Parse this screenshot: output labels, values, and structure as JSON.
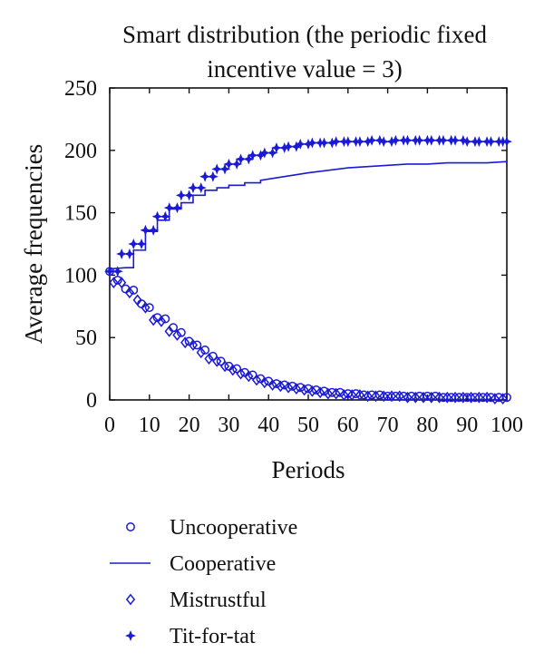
{
  "chart_data": {
    "type": "line",
    "title": "Smart distribution (the periodic fixed incentive value = 3)",
    "title_lines": [
      "Smart distribution (the periodic fixed",
      "incentive value = 3)"
    ],
    "xlabel": "Periods",
    "ylabel": "Average frequencies",
    "xlim": [
      0,
      100
    ],
    "ylim": [
      0,
      250
    ],
    "xticks": [
      0,
      10,
      20,
      30,
      40,
      50,
      60,
      70,
      80,
      90,
      100
    ],
    "yticks": [
      0,
      50,
      100,
      150,
      200,
      250
    ],
    "grid": false,
    "legend_position": "below",
    "series_color": "#1a1ad6",
    "series": [
      {
        "name": "Uncooperative",
        "marker": "circle",
        "x": [
          0,
          2,
          4,
          6,
          8,
          10,
          12,
          14,
          16,
          18,
          20,
          22,
          24,
          26,
          28,
          30,
          32,
          34,
          36,
          38,
          40,
          42,
          44,
          46,
          48,
          50,
          52,
          54,
          56,
          58,
          60,
          62,
          64,
          66,
          68,
          70,
          72,
          74,
          76,
          78,
          80,
          82,
          84,
          86,
          88,
          90,
          92,
          94,
          96,
          98,
          100
        ],
        "values": [
          103,
          96,
          89,
          88,
          77,
          74,
          66,
          65,
          58,
          54,
          47,
          44,
          40,
          35,
          31,
          27,
          25,
          22,
          20,
          17,
          15,
          13,
          12,
          11,
          10,
          9,
          8,
          7,
          6,
          6,
          5,
          5,
          4,
          4,
          4,
          3,
          3,
          3,
          3,
          3,
          3,
          3,
          2,
          2,
          2,
          2,
          2,
          2,
          2,
          2,
          2
        ]
      },
      {
        "name": "Cooperative",
        "marker": "line",
        "x": [
          0,
          4,
          6,
          6,
          9,
          9,
          12,
          12,
          15,
          15,
          18,
          18,
          21,
          21,
          24,
          24,
          27,
          27,
          30,
          30,
          34,
          34,
          38,
          38,
          42,
          46,
          50,
          55,
          60,
          65,
          70,
          75,
          80,
          85,
          90,
          95,
          100
        ],
        "values": [
          105,
          106,
          106,
          120,
          120,
          135,
          135,
          144,
          144,
          153,
          153,
          158,
          158,
          164,
          164,
          168,
          168,
          170,
          170,
          172,
          172,
          174,
          174,
          176,
          178,
          180,
          182,
          184,
          186,
          187,
          188,
          189,
          189,
          190,
          190,
          190,
          191
        ]
      },
      {
        "name": "Mistrustful",
        "marker": "diamond",
        "x": [
          1,
          3,
          5,
          7,
          9,
          11,
          13,
          15,
          17,
          19,
          21,
          23,
          25,
          27,
          29,
          31,
          33,
          35,
          37,
          39,
          41,
          43,
          45,
          47,
          49,
          51,
          53,
          55,
          57,
          59,
          61,
          63,
          65,
          67,
          69,
          71,
          73,
          75,
          77,
          79,
          81,
          83,
          85,
          87,
          89,
          91,
          93,
          95,
          97,
          99
        ],
        "values": [
          94,
          94,
          86,
          80,
          74,
          64,
          63,
          55,
          52,
          46,
          44,
          38,
          33,
          31,
          27,
          24,
          21,
          19,
          16,
          14,
          12,
          11,
          10,
          9,
          8,
          7,
          6,
          5,
          5,
          4,
          4,
          4,
          3,
          3,
          3,
          3,
          3,
          2,
          2,
          2,
          2,
          2,
          2,
          2,
          2,
          2,
          2,
          2,
          1,
          1
        ]
      },
      {
        "name": "Tit-for-tat",
        "marker": "star",
        "x": [
          0,
          2,
          3,
          5,
          6,
          8,
          9,
          11,
          12,
          14,
          15,
          17,
          18,
          20,
          21,
          23,
          24,
          26,
          27,
          29,
          30,
          32,
          33,
          35,
          36,
          38,
          39,
          41,
          42,
          44,
          45,
          47,
          48,
          50,
          51,
          53,
          54,
          56,
          57,
          59,
          60,
          62,
          63,
          65,
          66,
          68,
          69,
          71,
          72,
          74,
          75,
          77,
          78,
          80,
          81,
          83,
          84,
          86,
          87,
          89,
          90,
          92,
          93,
          95,
          96,
          98,
          99,
          100
        ],
        "values": [
          103,
          103,
          117,
          117,
          125,
          125,
          136,
          136,
          147,
          147,
          154,
          154,
          164,
          164,
          170,
          170,
          179,
          179,
          185,
          185,
          189,
          189,
          193,
          193,
          196,
          196,
          198,
          198,
          202,
          202,
          203,
          203,
          205,
          205,
          206,
          206,
          206,
          206,
          207,
          207,
          207,
          207,
          207,
          207,
          208,
          208,
          207,
          207,
          208,
          208,
          208,
          208,
          208,
          208,
          208,
          208,
          208,
          208,
          208,
          208,
          207,
          207,
          207,
          207,
          207,
          207,
          207,
          207
        ]
      }
    ]
  }
}
